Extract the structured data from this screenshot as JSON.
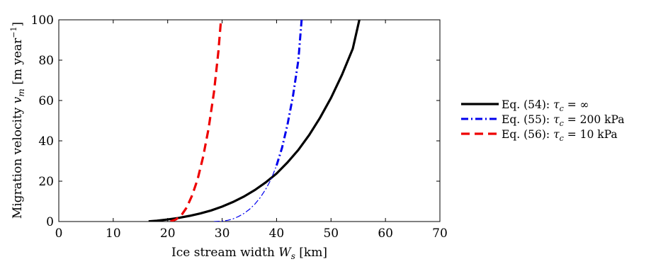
{
  "chart_data": {
    "type": "line",
    "xlabel": {
      "text": "Ice stream width ",
      "math": "W",
      "sub": "s",
      "unit": " [km]"
    },
    "ylabel": {
      "text": "Migration velocity ",
      "math": "v",
      "sub": "m",
      "unit_pre": " [m year",
      "unit_sup": "−1",
      "unit_post": "]"
    },
    "xlim": [
      0,
      70
    ],
    "ylim": [
      0,
      100
    ],
    "xticks": [
      "0",
      "10",
      "20",
      "30",
      "40",
      "50",
      "60",
      "70"
    ],
    "yticks": [
      "0",
      "20",
      "40",
      "60",
      "80",
      "100"
    ],
    "grid": false,
    "legend_position": "right",
    "series": [
      {
        "name": "Eq. (54):  τc = ∞",
        "legend": {
          "eq": "Eq. (54):",
          "sym": "τ",
          "sub": "c",
          "rhs": " = ∞"
        },
        "color": "#000000",
        "style": "solid",
        "x": [
          16.5,
          18,
          20,
          22,
          24,
          26,
          28,
          30,
          32,
          34,
          36,
          38,
          40,
          42,
          44,
          46,
          48,
          50,
          52,
          54,
          55.2
        ],
        "y": [
          0.1,
          0.4,
          1.0,
          1.8,
          2.8,
          4.0,
          5.5,
          7.4,
          9.7,
          12.4,
          15.6,
          19.4,
          23.8,
          29.3,
          35.5,
          42.9,
          51.5,
          61.3,
          72.7,
          85.7,
          100
        ]
      },
      {
        "name": "Eq. (55):  τc = 200 kPa",
        "legend": {
          "eq": "Eq. (55):",
          "sym": "τ",
          "sub": "c",
          "rhs": " = 200 kPa"
        },
        "color": "#0000ee",
        "style": "dash-dot",
        "x": [
          28.5,
          30,
          31,
          32,
          33,
          34,
          35,
          36,
          37,
          38,
          39,
          40,
          41,
          42,
          43,
          44,
          44.6
        ],
        "y": [
          0,
          0.2,
          0.6,
          1.3,
          2.5,
          4.0,
          6.0,
          8.6,
          11.9,
          16.0,
          21.0,
          27.8,
          36.5,
          48.0,
          62.0,
          80.0,
          100
        ]
      },
      {
        "name": "Eq. (56):  τc = 10 kPa",
        "legend": {
          "eq": "Eq. (56):",
          "sym": "τ",
          "sub": "c",
          "rhs": " = 10 kPa"
        },
        "color": "#ee0000",
        "style": "dashed",
        "x": [
          20.5,
          21.5,
          22.5,
          23.5,
          24.5,
          25.5,
          26.5,
          27.5,
          28.5,
          29.3,
          29.8
        ],
        "y": [
          0,
          1.0,
          3.0,
          7.0,
          13.0,
          21.0,
          32.0,
          46.0,
          64.0,
          84.0,
          100
        ]
      }
    ]
  }
}
